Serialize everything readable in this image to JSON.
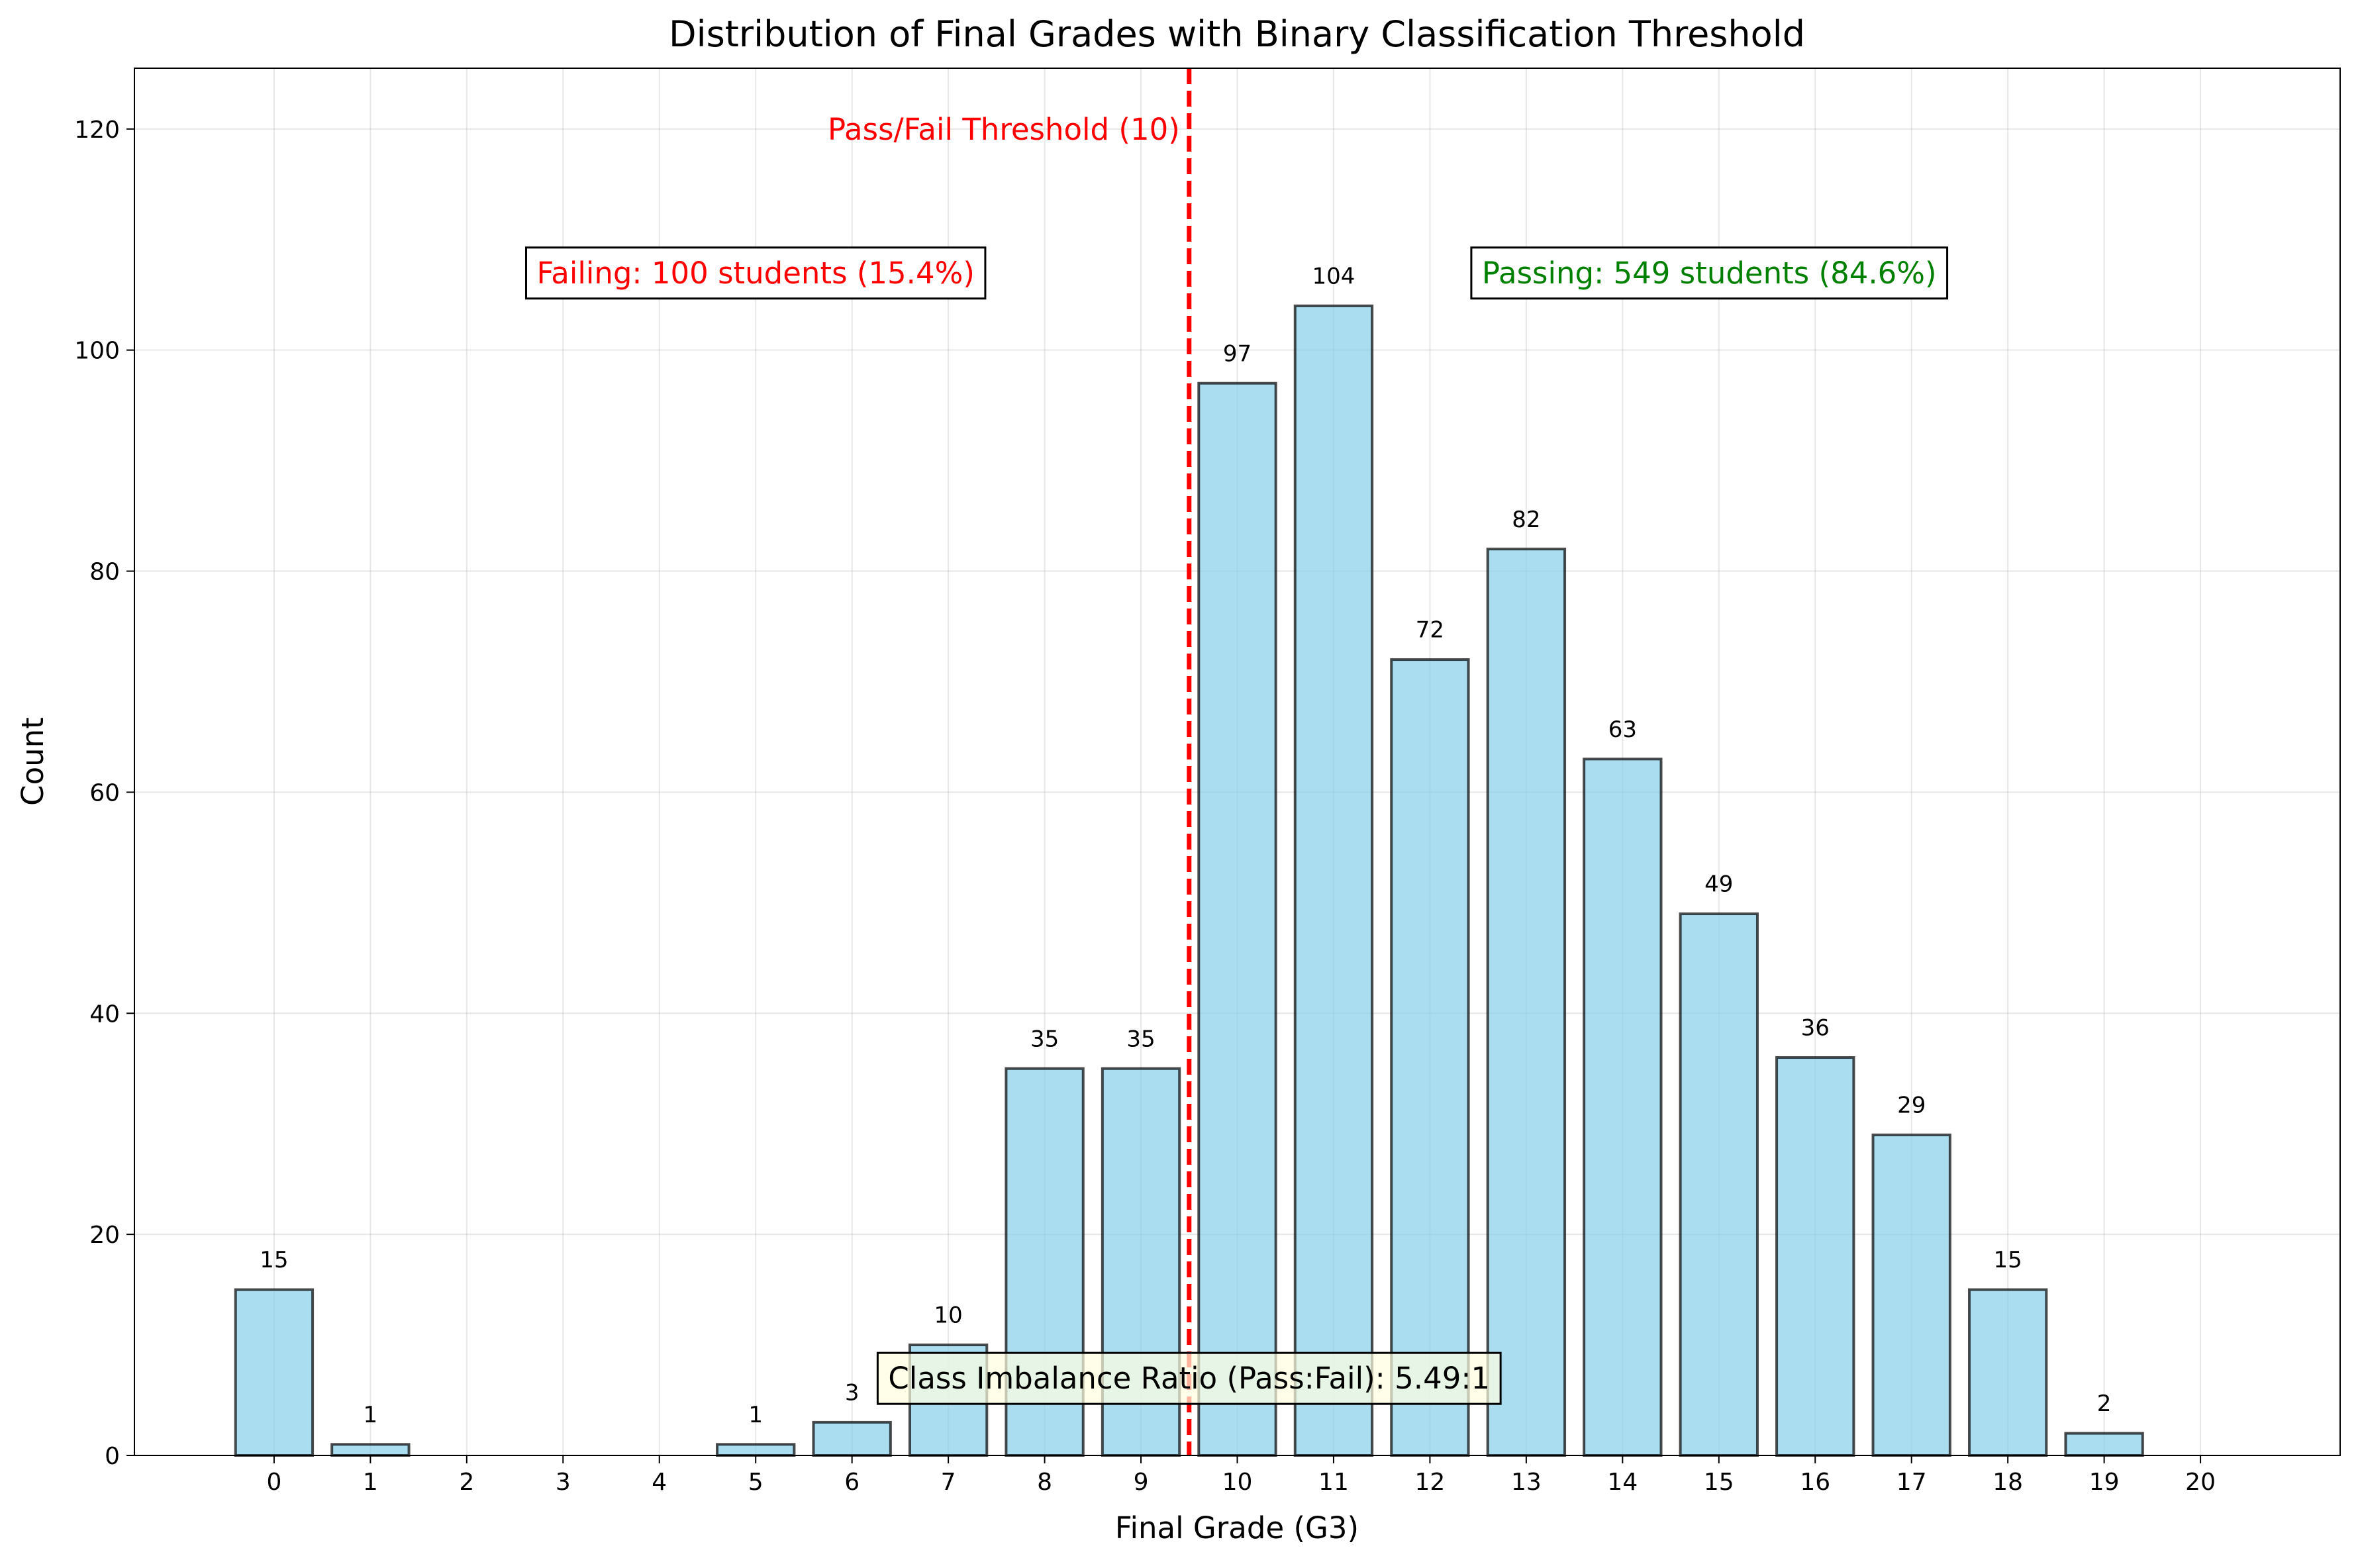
{
  "chart_data": {
    "type": "bar",
    "title": "Distribution of Final Grades with Binary Classification Threshold",
    "xlabel": "Final Grade (G3)",
    "ylabel": "Count",
    "categories": [
      "0",
      "1",
      "2",
      "3",
      "4",
      "5",
      "6",
      "7",
      "8",
      "9",
      "10",
      "11",
      "12",
      "13",
      "14",
      "15",
      "16",
      "17",
      "18",
      "19",
      "20"
    ],
    "x": [
      0,
      1,
      2,
      3,
      4,
      5,
      6,
      7,
      8,
      9,
      10,
      11,
      12,
      13,
      14,
      15,
      16,
      17,
      18,
      19,
      20
    ],
    "values": [
      15,
      1,
      0,
      0,
      0,
      1,
      3,
      10,
      35,
      35,
      97,
      104,
      72,
      82,
      63,
      49,
      36,
      29,
      15,
      2,
      0
    ],
    "bar_labels": [
      "15",
      "1",
      "",
      "",
      "",
      "1",
      "3",
      "10",
      "35",
      "35",
      "97",
      "104",
      "72",
      "82",
      "63",
      "49",
      "36",
      "29",
      "15",
      "2",
      ""
    ],
    "xlim": [
      -1.45,
      21.45
    ],
    "ylim": [
      0,
      125.5
    ],
    "yticks": [
      0,
      20,
      40,
      60,
      80,
      100,
      120
    ],
    "ytick_labels": [
      "0",
      "20",
      "40",
      "60",
      "80",
      "100",
      "120"
    ],
    "grid": true,
    "bar_color": "#87CEEB",
    "bar_edge_color": "#000000",
    "threshold": {
      "x": 9.5,
      "label": "Pass/Fail Threshold (10)",
      "color": "#FF0000",
      "style": "dashed"
    },
    "annotations": {
      "failing": {
        "text": "Failing: 100 students (15.4%)",
        "color": "#FF0000",
        "x": 5,
        "y": 107
      },
      "passing": {
        "text": "Passing: 549 students (84.6%)",
        "color": "#008000",
        "x": 14.9,
        "y": 107
      },
      "ratio": {
        "text": "Class Imbalance Ratio (Pass:Fail): 5.49:1",
        "color": "#000000",
        "background": "#FFFFE0",
        "x": 9.5,
        "y": 7
      }
    }
  }
}
